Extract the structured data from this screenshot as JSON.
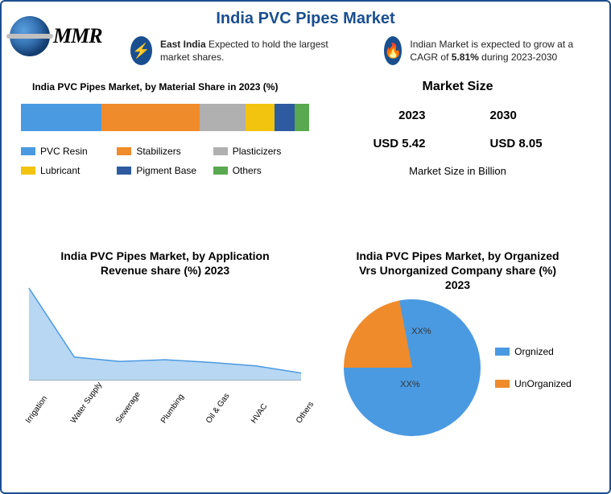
{
  "page_title": "India PVC Pipes Market",
  "logo_text": "MMR",
  "callouts": {
    "east_india": {
      "icon_glyph": "⚡",
      "pre_bold": "East India",
      "rest": " Expected to hold the largest market shares."
    },
    "cagr": {
      "icon_glyph": "🔥",
      "pre": "Indian Market is expected to grow at a CAGR of ",
      "bold": "5.81%",
      "post": " during 2023-2030"
    }
  },
  "material_share": {
    "title": "India PVC Pipes Market, by Material Share in 2023 (%)",
    "type": "stacked_bar",
    "segments": [
      {
        "name": "PVC Resin",
        "value": 28,
        "color": "#4a9ae1"
      },
      {
        "name": "Stabilizers",
        "value": 34,
        "color": "#f08b2c"
      },
      {
        "name": "Plasticizers",
        "value": 16,
        "color": "#b0b0b0"
      },
      {
        "name": "Lubricant",
        "value": 10,
        "color": "#f2c40f"
      },
      {
        "name": "Pigment Base",
        "value": 7,
        "color": "#2e5aa0"
      },
      {
        "name": "Others",
        "value": 5,
        "color": "#5aa84f"
      }
    ],
    "legend_label_fontsize": 12
  },
  "market_size": {
    "title": "Market Size",
    "years": {
      "a": "2023",
      "b": "2030"
    },
    "values": {
      "a": "USD 5.42",
      "b": "USD 8.05"
    },
    "subtitle": "Market Size in Billion"
  },
  "application_revenue": {
    "title": "India PVC Pipes Market, by Application Revenue share (%) 2023",
    "type": "area",
    "categories": [
      "Irrigation",
      "Water Supply",
      "Sewerage",
      "Plumbing",
      "Oil & Gas",
      "HVAC",
      "Others"
    ],
    "values": [
      100,
      22,
      17,
      19,
      16,
      12,
      4
    ],
    "y_max": 100,
    "fill_color": "#4a9ae1",
    "fill_opacity": 0.4,
    "stroke_color": "#4a9ae1",
    "background": "#ffffff",
    "label_fontsize": 10
  },
  "company_share": {
    "title": "India PVC Pipes Market, by Organized Vrs Unorganized Company share (%) 2023",
    "type": "pie",
    "slices": [
      {
        "name": "Orgnized",
        "value": 78,
        "color": "#4a9ae1",
        "label": "XX%"
      },
      {
        "name": "UnOrganized",
        "value": 22,
        "color": "#f08b2c",
        "label": "XX%"
      }
    ],
    "label_fontsize": 12
  },
  "colors": {
    "brand": "#1a4f8f",
    "background": "#ffffff"
  }
}
